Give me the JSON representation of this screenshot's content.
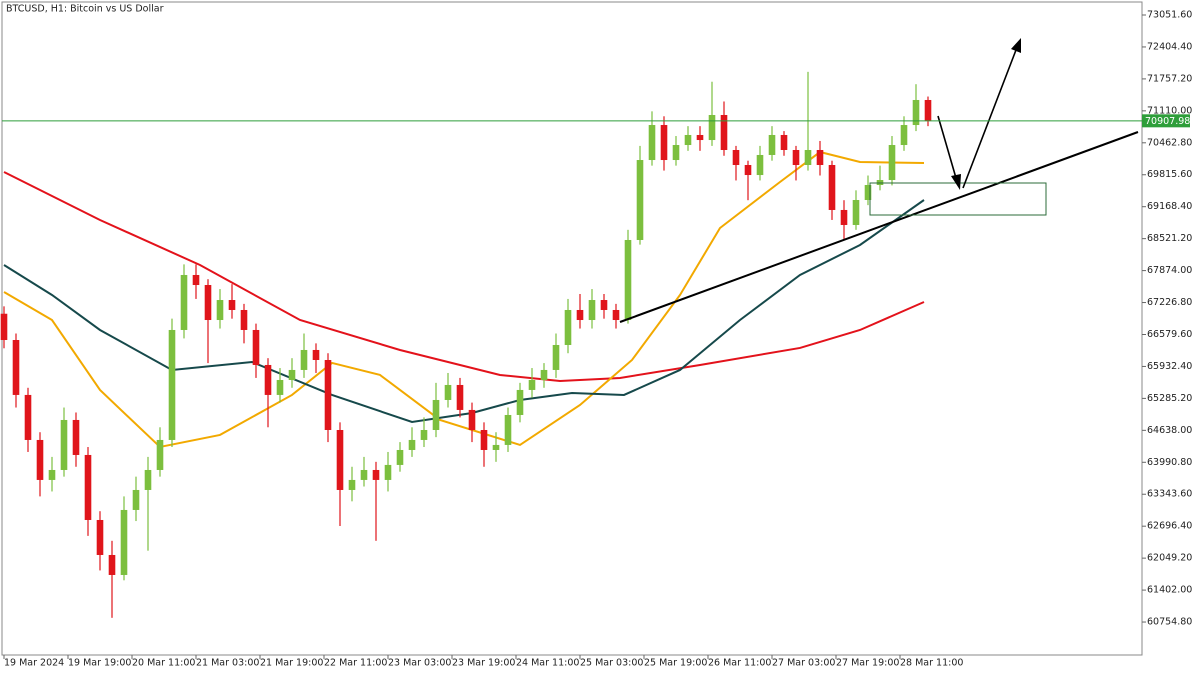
{
  "chart_data": {
    "type": "candlestick",
    "title": "BTCUSD, H1:  Bitcoin vs US Dollar",
    "x": [
      0,
      3,
      6,
      9,
      12,
      15,
      18,
      21,
      24,
      27,
      30,
      33,
      36,
      39,
      42,
      45,
      48,
      51,
      54,
      57,
      60,
      63,
      66,
      69,
      72,
      75,
      78,
      81,
      84,
      87,
      90,
      93,
      96,
      99,
      102,
      105,
      108,
      111,
      114,
      117,
      120,
      123,
      126,
      129,
      132,
      135,
      138,
      141,
      144,
      147,
      150,
      153,
      156,
      159,
      162,
      165,
      168,
      171,
      174,
      177,
      180,
      183,
      186,
      189,
      192,
      195,
      198,
      201,
      204,
      207,
      210,
      213,
      216,
      219,
      222,
      225,
      228,
      231
    ],
    "open": [
      67000,
      66468,
      65355,
      64443,
      63633,
      63835,
      64848,
      64139,
      62822,
      62113,
      61708,
      63025,
      63430,
      63835,
      64443,
      66671,
      67785,
      67582,
      66873,
      67278,
      67076,
      66671,
      65962,
      65355,
      65658,
      65861,
      66266,
      66063,
      64645,
      63430,
      63633,
      63835,
      63633,
      63937,
      64240,
      64443,
      64645,
      65253,
      65557,
      65051,
      64645,
      64240,
      64342,
      64949,
      65456,
      65658,
      65861,
      66367,
      67076,
      66873,
      67278,
      67076,
      66873,
      68494,
      70114,
      70823,
      70114,
      70418,
      70621,
      70519,
      71026,
      70317,
      70013,
      69810,
      70216,
      70621,
      70317,
      70013,
      70317,
      70013,
      69102,
      68798,
      69304,
      69608,
      69709,
      70418,
      70823,
      71330
    ],
    "high": [
      67150,
      66600,
      65500,
      64600,
      64100,
      65100,
      65000,
      64300,
      63000,
      62400,
      63300,
      63700,
      64100,
      64700,
      66900,
      68000,
      68000,
      67700,
      67500,
      67600,
      67200,
      66800,
      66100,
      65900,
      66100,
      66600,
      66400,
      66200,
      64800,
      63900,
      64100,
      64000,
      64200,
      64400,
      64700,
      64900,
      65600,
      65800,
      65700,
      65200,
      64800,
      64600,
      65100,
      65600,
      65900,
      66000,
      66600,
      67300,
      67400,
      67500,
      67400,
      67200,
      68700,
      70400,
      71100,
      71000,
      70600,
      70800,
      70800,
      71700,
      71300,
      70400,
      70100,
      70400,
      70800,
      70700,
      70400,
      71900,
      70500,
      70100,
      69300,
      69500,
      69800,
      70000,
      70600,
      71000,
      71650,
      71400
    ],
    "low": [
      66300,
      65100,
      64200,
      63300,
      63400,
      63700,
      63900,
      62500,
      61800,
      60840,
      61600,
      62800,
      62200,
      63700,
      64300,
      66500,
      67300,
      66000,
      66700,
      66900,
      66400,
      65700,
      64700,
      65200,
      65500,
      65700,
      65800,
      64400,
      62700,
      63200,
      63500,
      62400,
      63400,
      63800,
      64100,
      64300,
      64500,
      65100,
      64900,
      64400,
      63900,
      64000,
      64200,
      64800,
      65300,
      65500,
      65700,
      66200,
      66700,
      66700,
      66900,
      66700,
      66800,
      68400,
      70000,
      69900,
      70000,
      70300,
      70300,
      70400,
      70200,
      69700,
      69300,
      69700,
      70100,
      70200,
      69700,
      69900,
      69800,
      68900,
      68500,
      68700,
      69200,
      69500,
      69600,
      70300,
      70700,
      70800
    ],
    "close": [
      66468,
      65355,
      64443,
      63633,
      63835,
      64848,
      64139,
      62822,
      62113,
      61708,
      63025,
      63430,
      63835,
      64443,
      66671,
      67785,
      67582,
      66873,
      67278,
      67076,
      66671,
      65962,
      65355,
      65658,
      65861,
      66266,
      66063,
      64645,
      63430,
      63633,
      63835,
      63633,
      63937,
      64240,
      64443,
      64645,
      65253,
      65557,
      65051,
      64645,
      64240,
      64342,
      64949,
      65456,
      65658,
      65861,
      66367,
      67076,
      66873,
      67278,
      67076,
      66873,
      68494,
      70114,
      70823,
      70114,
      70418,
      70621,
      70519,
      71026,
      70317,
      70013,
      69810,
      70216,
      70621,
      70317,
      70013,
      70317,
      70013,
      69102,
      68798,
      69304,
      69608,
      69709,
      70418,
      70823,
      71330,
      70908
    ],
    "up_color": "#7cbf3e",
    "down_color": "#e0151b",
    "series": [
      {
        "color": "#e3121b",
        "x": [
          0,
          24,
          49,
          74,
          99,
          124,
          139,
          154,
          174,
          199,
          214,
          230
        ],
        "values": [
          69871,
          68899,
          67987,
          66873,
          66266,
          65760,
          65638,
          65699,
          65962,
          66307,
          66671,
          67238
        ]
      },
      {
        "color": "#f2a900",
        "x": [
          0,
          12,
          24,
          39,
          54,
          72,
          82,
          94,
          109,
          129,
          144,
          157,
          169,
          179,
          194,
          204,
          214,
          230
        ],
        "values": [
          67440,
          66873,
          65456,
          64301,
          64545,
          65355,
          66003,
          65760,
          64848,
          64342,
          65152,
          66063,
          67380,
          68737,
          69669,
          70276,
          70074,
          70053
        ]
      },
      {
        "color": "#16494b",
        "x": [
          0,
          12,
          24,
          42,
          62,
          82,
          102,
          117,
          129,
          142,
          155,
          169,
          184,
          199,
          214,
          230
        ],
        "values": [
          67987,
          67380,
          66671,
          65861,
          66023,
          65355,
          64807,
          64990,
          65253,
          65395,
          65355,
          65861,
          66873,
          67785,
          68393,
          69304
        ]
      }
    ],
    "price_line": 70907.98,
    "price_line_color": "#2e9e3a",
    "xlim": [
      -0.5,
      284.5
    ],
    "xticks": [
      {
        "value": 0,
        "label": "19 Mar 2024"
      },
      {
        "value": 16,
        "label": "19 Mar 19:00"
      },
      {
        "value": 32,
        "label": "20 Mar 11:00"
      },
      {
        "value": 48,
        "label": "21 Mar 03:00"
      },
      {
        "value": 64,
        "label": "21 Mar 19:00"
      },
      {
        "value": 80,
        "label": "22 Mar 11:00"
      },
      {
        "value": 96,
        "label": "23 Mar 03:00"
      },
      {
        "value": 112,
        "label": "23 Mar 19:00"
      },
      {
        "value": 128,
        "label": "24 Mar 11:00"
      },
      {
        "value": 144,
        "label": "25 Mar 03:00"
      },
      {
        "value": 160,
        "label": "25 Mar 19:00"
      },
      {
        "value": 176,
        "label": "26 Mar 11:00"
      },
      {
        "value": 192,
        "label": "27 Mar 03:00"
      },
      {
        "value": 208,
        "label": "27 Mar 19:00"
      },
      {
        "value": 224,
        "label": "28 Mar 11:00"
      }
    ],
    "ylim": [
      60087,
      73315
    ],
    "yticks": [
      {
        "value": 73051.6,
        "label": "73051.60"
      },
      {
        "value": 72404.4,
        "label": "72404.40"
      },
      {
        "value": 71757.2,
        "label": "71757.20"
      },
      {
        "value": 71110,
        "label": "71110.00"
      },
      {
        "value": 70462.8,
        "label": "70462.80"
      },
      {
        "value": 69815.6,
        "label": "69815.60"
      },
      {
        "value": 69168.4,
        "label": "69168.40"
      },
      {
        "value": 68521.2,
        "label": "68521.20"
      },
      {
        "value": 67874,
        "label": "67874.00"
      },
      {
        "value": 67226.8,
        "label": "67226.80"
      },
      {
        "value": 66579.6,
        "label": "66579.60"
      },
      {
        "value": 65932.4,
        "label": "65932.40"
      },
      {
        "value": 65285.2,
        "label": "65285.20"
      },
      {
        "value": 64638,
        "label": "64638.00"
      },
      {
        "value": 63990.8,
        "label": "63990.80"
      },
      {
        "value": 63343.6,
        "label": "63343.60"
      },
      {
        "value": 62696.4,
        "label": "62696.40"
      },
      {
        "value": 62049.2,
        "label": "62049.20"
      },
      {
        "value": 61402,
        "label": "61402.00"
      },
      {
        "value": 60754.8,
        "label": "60754.80"
      }
    ]
  }
}
